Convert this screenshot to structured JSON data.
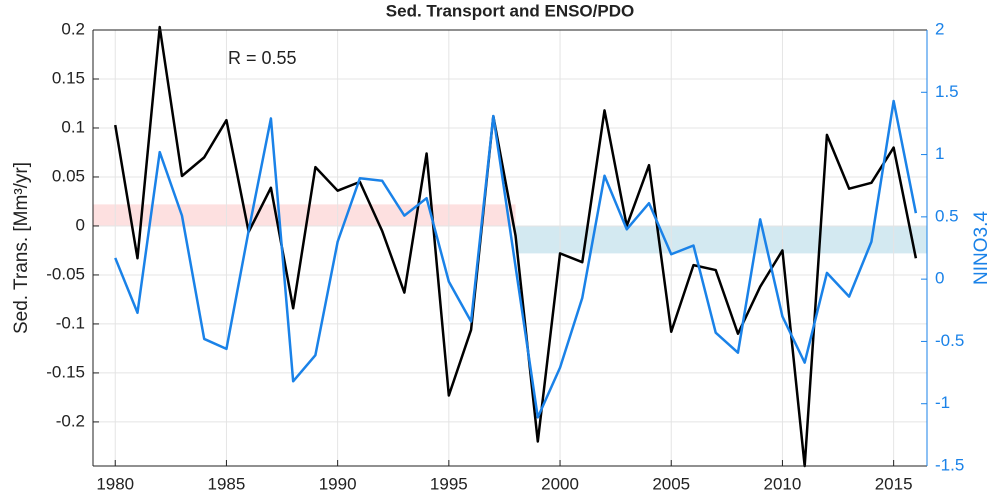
{
  "chart_data": {
    "type": "line",
    "title": "Sed. Transport and ENSO/PDO",
    "ylabel": "Sed. Trans. [Mm³/yr]",
    "y2label": "NINO3.4",
    "annotation": "R = 0.55",
    "x": [
      1980,
      1981,
      1982,
      1983,
      1984,
      1985,
      1986,
      1987,
      1988,
      1989,
      1990,
      1991,
      1992,
      1993,
      1994,
      1995,
      1996,
      1997,
      1998,
      1999,
      2000,
      2001,
      2002,
      2003,
      2004,
      2005,
      2006,
      2007,
      2008,
      2009,
      2010,
      2011,
      2012,
      2013,
      2014,
      2015,
      2016
    ],
    "series": [
      {
        "color": "#000000",
        "values": [
          0.103,
          -0.033,
          0.203,
          0.051,
          0.07,
          0.108,
          -0.006,
          0.039,
          -0.084,
          0.06,
          0.036,
          0.045,
          -0.005,
          -0.068,
          0.074,
          -0.173,
          -0.106,
          0.112,
          -0.01,
          -0.22,
          -0.028,
          -0.037,
          0.118,
          0.0,
          0.062,
          -0.108,
          -0.04,
          -0.045,
          -0.11,
          -0.062,
          -0.025,
          -0.245,
          0.093,
          0.038,
          0.044,
          0.08,
          -0.033
        ]
      },
      {
        "color": "#1a82e8",
        "axis": "y2",
        "values": [
          0.17,
          -0.27,
          1.02,
          0.51,
          -0.48,
          -0.56,
          0.39,
          1.29,
          -0.82,
          -0.61,
          0.3,
          0.81,
          0.79,
          0.51,
          0.65,
          -0.02,
          -0.34,
          1.31,
          0.1,
          -1.11,
          -0.71,
          -0.15,
          0.83,
          0.4,
          0.61,
          0.2,
          0.27,
          -0.43,
          -0.59,
          0.48,
          -0.3,
          -0.67,
          0.05,
          -0.14,
          0.3,
          1.43,
          0.53
        ]
      }
    ],
    "bands": [
      {
        "x": [
          1979,
          1998
        ],
        "y": [
          0,
          0.022
        ],
        "color": "#fde0e0"
      },
      {
        "x": [
          1998,
          2016.5
        ],
        "y": [
          -0.028,
          0
        ],
        "color": "#d3e9f1"
      }
    ],
    "xlim": [
      1979,
      2016.5
    ],
    "xticks": [
      1980,
      1985,
      1990,
      1995,
      2000,
      2005,
      2010,
      2015
    ],
    "ylim": [
      -0.245,
      0.2
    ],
    "yticks": [
      -0.2,
      -0.15,
      -0.1,
      -0.05,
      0,
      0.05,
      0.1,
      0.15,
      0.2
    ],
    "y2lim": [
      -1.5,
      2
    ],
    "y2ticks": [
      -1.5,
      -1,
      -0.5,
      0,
      0.5,
      1,
      1.5,
      2
    ],
    "y2color": "#1a82e8",
    "grid": true
  }
}
